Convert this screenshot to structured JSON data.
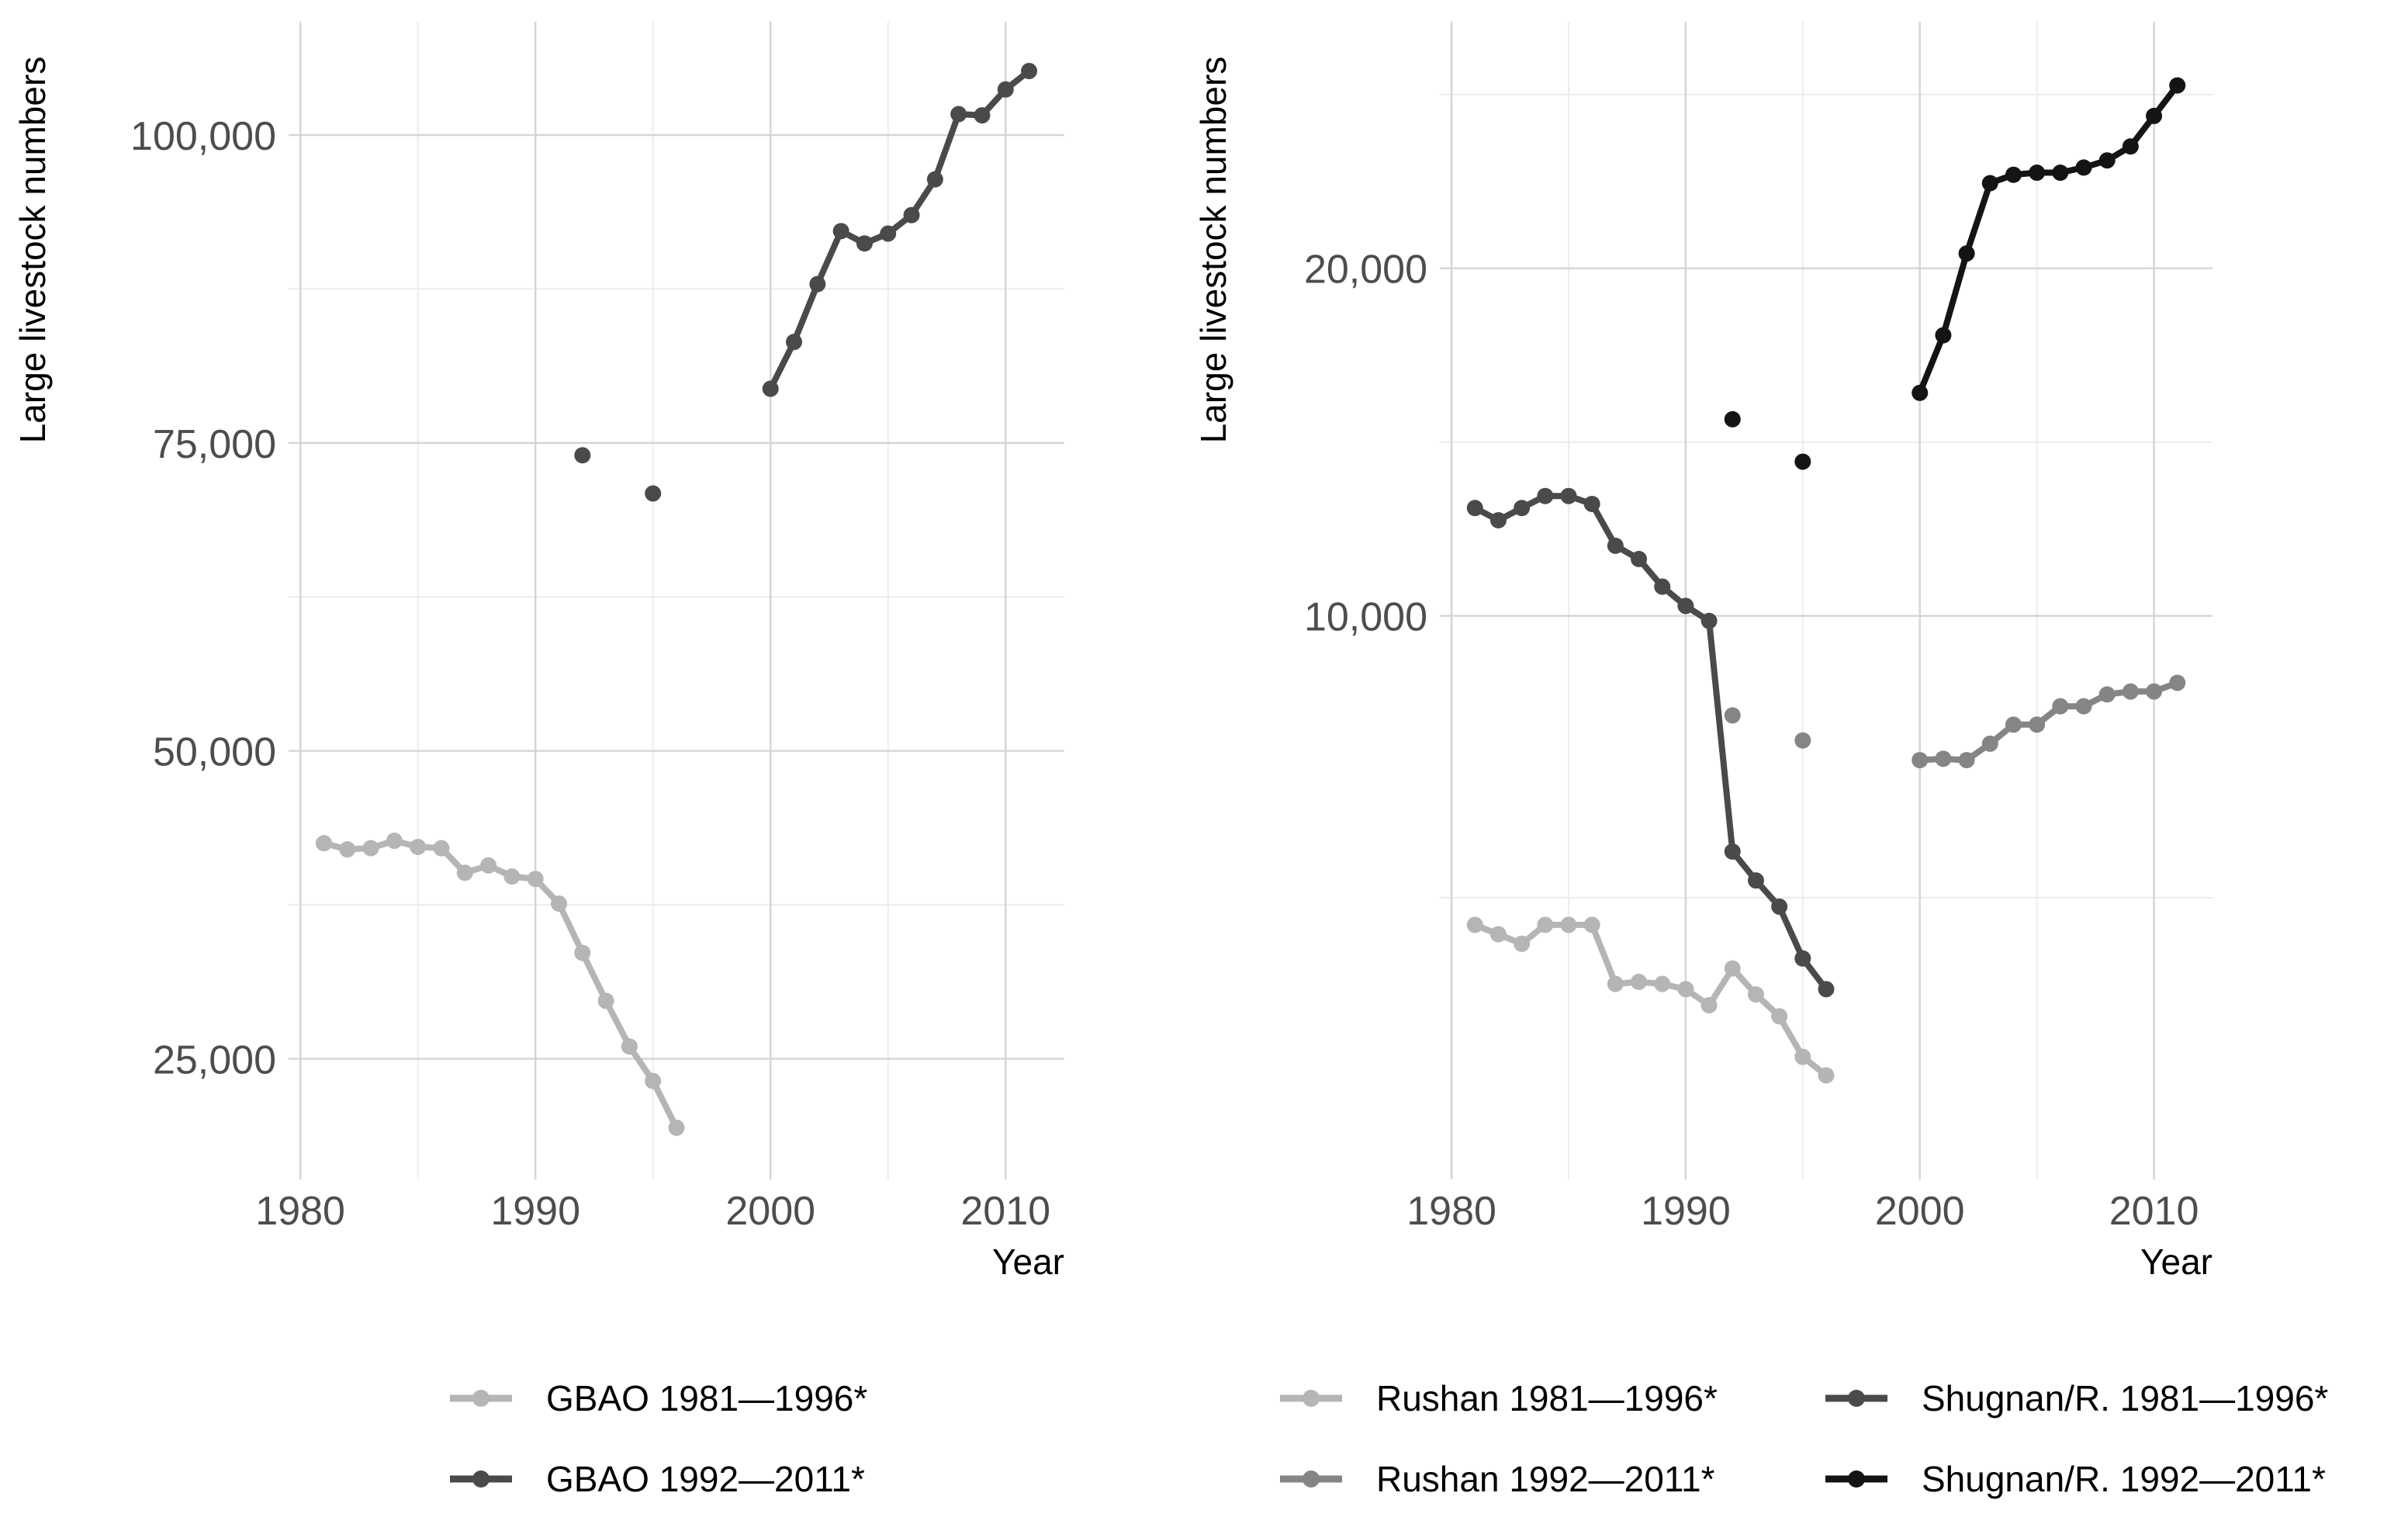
{
  "colors": {
    "grid_major": "#d4d4d4",
    "grid_minor": "#ececec",
    "text": "#4d4d4d",
    "title": "#000000",
    "gbao_1981": "#b5b5b5",
    "gbao_1992": "#4a4a4a",
    "rushan_1981": "#b5b5b5",
    "rushan_1992": "#858585",
    "shugnan_1981": "#4a4a4a",
    "shugnan_1992": "#141414"
  },
  "chart_data": [
    {
      "type": "line",
      "xlabel": "Year",
      "ylabel": "Large livestock numbers",
      "xlim": [
        1979.5,
        2012.5
      ],
      "ylim": [
        15200,
        109200
      ],
      "y_scale": "linear",
      "x_ticks": [
        1980,
        1990,
        2000,
        2010
      ],
      "x_tick_labels": [
        "1980",
        "1990",
        "2000",
        "2010"
      ],
      "y_ticks": [
        25000,
        50000,
        75000,
        100000
      ],
      "y_tick_labels": [
        "25,000",
        "50,000",
        "75,000",
        "100,000"
      ],
      "x_minor": [
        1985,
        1995,
        2005
      ],
      "y_minor": [
        37500,
        62500,
        87500
      ],
      "legend_position": "bottom",
      "series": [
        {
          "name": "GBAO 1981—1996*",
          "color_key": "gbao_1981",
          "segments": [
            [
              [
                1981,
                42500
              ],
              [
                1982,
                42000
              ],
              [
                1983,
                42100
              ],
              [
                1984,
                42700
              ],
              [
                1985,
                42200
              ],
              [
                1986,
                42100
              ],
              [
                1987,
                40100
              ],
              [
                1988,
                40700
              ],
              [
                1989,
                39800
              ],
              [
                1990,
                39600
              ],
              [
                1991,
                37600
              ],
              [
                1992,
                33600
              ],
              [
                1993,
                29700
              ],
              [
                1994,
                26000
              ],
              [
                1995,
                23200
              ],
              [
                1996,
                19400
              ]
            ]
          ],
          "points": []
        },
        {
          "name": "GBAO 1992—2011*",
          "color_key": "gbao_1992",
          "segments": [
            [
              [
                2000,
                79400
              ],
              [
                2001,
                83200
              ],
              [
                2002,
                87900
              ],
              [
                2003,
                92200
              ],
              [
                2004,
                91200
              ],
              [
                2005,
                92000
              ],
              [
                2006,
                93500
              ],
              [
                2007,
                96400
              ],
              [
                2008,
                101700
              ],
              [
                2009,
                101600
              ],
              [
                2010,
                103700
              ],
              [
                2011,
                105200
              ]
            ]
          ],
          "points": [
            [
              1992,
              74000
            ],
            [
              1995,
              70900
            ]
          ]
        }
      ]
    },
    {
      "type": "line",
      "xlabel": "Year",
      "ylabel": "Large livestock numbers",
      "xlim": [
        1979.5,
        2012.5
      ],
      "y_scale": "log",
      "ylim": [
        3250,
        32700
      ],
      "x_ticks": [
        1980,
        1990,
        2000,
        2010
      ],
      "x_tick_labels": [
        "1980",
        "1990",
        "2000",
        "2010"
      ],
      "y_ticks": [
        10000,
        20000
      ],
      "y_tick_labels": [
        "10,000",
        "20,000"
      ],
      "x_minor": [
        1985,
        1995,
        2005
      ],
      "y_minor": [
        5700,
        14140,
        28280
      ],
      "legend_position": "bottom",
      "series": [
        {
          "name": "Rushan 1981—1996*",
          "color_key": "rushan_1981",
          "segments": [
            [
              [
                1981,
                5400
              ],
              [
                1982,
                5300
              ],
              [
                1983,
                5200
              ],
              [
                1984,
                5400
              ],
              [
                1985,
                5400
              ],
              [
                1986,
                5400
              ],
              [
                1987,
                4800
              ],
              [
                1988,
                4820
              ],
              [
                1989,
                4800
              ],
              [
                1990,
                4750
              ],
              [
                1991,
                4600
              ],
              [
                1992,
                4950
              ],
              [
                1993,
                4700
              ],
              [
                1994,
                4500
              ],
              [
                1995,
                4150
              ],
              [
                1996,
                4000
              ]
            ]
          ],
          "points": []
        },
        {
          "name": "Rushan 1992—2011*",
          "color_key": "rushan_1992",
          "segments": [
            [
              [
                2000,
                7500
              ],
              [
                2001,
                7520
              ],
              [
                2002,
                7500
              ],
              [
                2003,
                7750
              ],
              [
                2004,
                8050
              ],
              [
                2005,
                8050
              ],
              [
                2006,
                8350
              ],
              [
                2007,
                8350
              ],
              [
                2008,
                8550
              ],
              [
                2009,
                8600
              ],
              [
                2010,
                8600
              ],
              [
                2011,
                8750
              ]
            ]
          ],
          "points": [
            [
              1992,
              8200
            ],
            [
              1995,
              7800
            ]
          ]
        },
        {
          "name": "Shugnan/R. 1981—1996*",
          "color_key": "shugnan_1981",
          "segments": [
            [
              [
                1981,
                12400
              ],
              [
                1982,
                12100
              ],
              [
                1983,
                12400
              ],
              [
                1984,
                12700
              ],
              [
                1985,
                12700
              ],
              [
                1986,
                12500
              ],
              [
                1987,
                11500
              ],
              [
                1988,
                11200
              ],
              [
                1989,
                10600
              ],
              [
                1990,
                10200
              ],
              [
                1991,
                9900
              ],
              [
                1992,
                6250
              ],
              [
                1993,
                5900
              ],
              [
                1994,
                5600
              ],
              [
                1995,
                5050
              ],
              [
                1996,
                4750
              ]
            ]
          ],
          "points": []
        },
        {
          "name": "Shugnan/R. 1992—2011*",
          "color_key": "shugnan_1992",
          "segments": [
            [
              [
                2000,
                15600
              ],
              [
                2001,
                17500
              ],
              [
                2002,
                20600
              ],
              [
                2003,
                23700
              ],
              [
                2004,
                24100
              ],
              [
                2005,
                24200
              ],
              [
                2006,
                24200
              ],
              [
                2007,
                24450
              ],
              [
                2008,
                24800
              ],
              [
                2009,
                25500
              ],
              [
                2010,
                27100
              ],
              [
                2011,
                28800
              ]
            ]
          ],
          "points": [
            [
              1992,
              14800
            ],
            [
              1995,
              13600
            ]
          ]
        }
      ]
    }
  ]
}
